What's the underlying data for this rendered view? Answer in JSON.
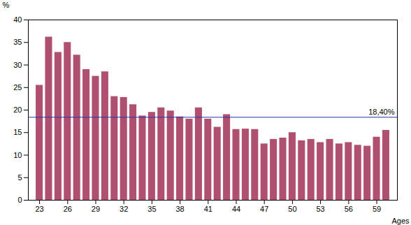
{
  "chart_data": {
    "type": "bar",
    "x": [
      23,
      24,
      25,
      26,
      27,
      28,
      29,
      30,
      31,
      32,
      33,
      34,
      35,
      36,
      37,
      38,
      39,
      40,
      41,
      42,
      43,
      44,
      45,
      46,
      47,
      48,
      49,
      50,
      51,
      52,
      53,
      54,
      55,
      56,
      57,
      58,
      59,
      60
    ],
    "values": [
      25.5,
      36.2,
      32.8,
      35.0,
      32.2,
      29.0,
      27.5,
      28.5,
      23.0,
      22.8,
      21.2,
      18.7,
      19.5,
      20.5,
      19.8,
      18.5,
      18.0,
      20.5,
      18.0,
      16.2,
      19.0,
      15.7,
      15.8,
      15.7,
      12.5,
      13.5,
      13.8,
      15.0,
      13.2,
      13.5,
      12.8,
      13.5,
      12.5,
      12.8,
      12.2,
      12.0,
      14.0,
      15.5
    ],
    "color": "#b05070",
    "xlabel": "Ages",
    "ylabel": "%",
    "xlim": [
      21.8,
      61.2
    ],
    "xticks": [
      23,
      26,
      29,
      32,
      35,
      38,
      41,
      44,
      47,
      50,
      53,
      56,
      59
    ],
    "ylim": [
      0,
      40
    ],
    "yticks": [
      0,
      5,
      10,
      15,
      20,
      25,
      30,
      35,
      40
    ],
    "reference_lines": [
      {
        "value": 18.4,
        "label": "18,40%",
        "color": "#2233aa"
      }
    ],
    "grid": false
  }
}
